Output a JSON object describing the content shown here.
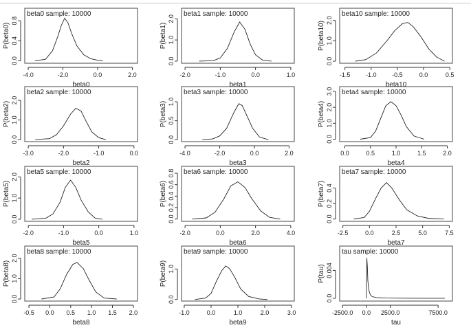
{
  "figure": {
    "background": "#ffffff",
    "line_color": "#222222"
  },
  "chart_data": [
    {
      "type": "line",
      "id": "beta0",
      "title": "beta0 sample: 10000",
      "xlabel": "beta0",
      "ylabel": "P(beta0)",
      "xticks": [
        "-4.0",
        "-2.0",
        "0.0",
        "2.0"
      ],
      "xtick_values": [
        -4,
        -2,
        0,
        2
      ],
      "xlim": [
        -4.2,
        2.3
      ],
      "yticks": [
        "0.0",
        "0.4",
        "0.8"
      ],
      "ytick_values": [
        0,
        0.4,
        0.8
      ],
      "ylim": [
        -0.05,
        1.05
      ],
      "x": [
        -3.6,
        -3.0,
        -2.6,
        -2.3,
        -2.1,
        -1.9,
        -1.7,
        -1.5,
        -1.2,
        -0.8,
        -0.4,
        0.0,
        0.3
      ],
      "y": [
        0.0,
        0.03,
        0.2,
        0.48,
        0.7,
        0.85,
        0.75,
        0.55,
        0.3,
        0.12,
        0.04,
        0.01,
        0.0
      ]
    },
    {
      "type": "line",
      "id": "beta1",
      "title": "beta1 sample: 10000",
      "xlabel": "beta1",
      "ylabel": "P(beta1)",
      "xticks": [
        "-2.0",
        "-1.0",
        "0.0",
        "1.0"
      ],
      "xtick_values": [
        -2,
        -1,
        0,
        1
      ],
      "xlim": [
        -2.1,
        1.1
      ],
      "yticks": [
        "0.0",
        "1.0",
        "2.0"
      ],
      "ytick_values": [
        0,
        1,
        2
      ],
      "ylim": [
        -0.1,
        2.5
      ],
      "x": [
        -1.6,
        -1.2,
        -1.0,
        -0.8,
        -0.6,
        -0.45,
        -0.3,
        -0.15,
        0.0,
        0.2,
        0.45
      ],
      "y": [
        0.0,
        0.02,
        0.15,
        0.6,
        1.4,
        1.85,
        1.5,
        0.8,
        0.3,
        0.05,
        0.0
      ]
    },
    {
      "type": "line",
      "id": "beta10",
      "title": "beta10 sample: 10000",
      "xlabel": "beta10",
      "ylabel": "P(beta10)",
      "xticks": [
        "-1.5",
        "-1.0",
        "-0.5",
        "0.0",
        "0.5"
      ],
      "xtick_values": [
        -1.5,
        -1,
        -0.5,
        0,
        0.5
      ],
      "xlim": [
        -1.6,
        0.55
      ],
      "yticks": [
        "0.0",
        "1.0",
        "2.0"
      ],
      "ytick_values": [
        0,
        1,
        2
      ],
      "ylim": [
        -0.1,
        2.6
      ],
      "x": [
        -1.3,
        -1.1,
        -0.9,
        -0.7,
        -0.55,
        -0.4,
        -0.3,
        -0.2,
        -0.05,
        0.1,
        0.25,
        0.4
      ],
      "y": [
        0.0,
        0.08,
        0.4,
        1.0,
        1.5,
        1.85,
        1.9,
        1.7,
        1.2,
        0.6,
        0.2,
        0.0
      ]
    },
    {
      "type": "line",
      "id": "beta2",
      "title": "beta2 sample: 10000",
      "xlabel": "beta2",
      "ylabel": "P(beta2)",
      "xticks": [
        "-3.0",
        "-2.0",
        "-1.0",
        "0.0"
      ],
      "xtick_values": [
        -3,
        -2,
        -1,
        0
      ],
      "xlim": [
        -3.1,
        0.1
      ],
      "yticks": [
        "0.0",
        "1.0",
        "2.0"
      ],
      "ytick_values": [
        0,
        1,
        2
      ],
      "ylim": [
        -0.1,
        2.7
      ],
      "x": [
        -2.8,
        -2.4,
        -2.2,
        -2.0,
        -1.8,
        -1.65,
        -1.5,
        -1.35,
        -1.2,
        -1.0,
        -0.8
      ],
      "y": [
        0.0,
        0.05,
        0.25,
        0.7,
        1.3,
        1.6,
        1.45,
        0.9,
        0.4,
        0.1,
        0.0
      ]
    },
    {
      "type": "line",
      "id": "beta3",
      "title": "beta3 sample: 10000",
      "xlabel": "beta3",
      "ylabel": "P(beta3)",
      "xticks": [
        "-4.0",
        "-2.0",
        "0.0",
        "2.0"
      ],
      "xtick_values": [
        -4,
        -2,
        0,
        2
      ],
      "xlim": [
        -4.2,
        2.3
      ],
      "yticks": [
        "0.0",
        "0.5",
        "1.0"
      ],
      "ytick_values": [
        0,
        0.5,
        1
      ],
      "ylim": [
        -0.05,
        1.4
      ],
      "x": [
        -3.0,
        -2.4,
        -2.0,
        -1.6,
        -1.2,
        -0.9,
        -0.7,
        -0.4,
        -0.1,
        0.3,
        0.8
      ],
      "y": [
        0.0,
        0.02,
        0.1,
        0.3,
        0.7,
        0.95,
        0.9,
        0.6,
        0.3,
        0.07,
        0.0
      ]
    },
    {
      "type": "line",
      "id": "beta4",
      "title": "beta4 sample: 10000",
      "xlabel": "beta4",
      "ylabel": "P(beta4)",
      "xticks": [
        "0.0",
        "0.5",
        "1.0",
        "1.5",
        "2.0"
      ],
      "xtick_values": [
        0,
        0.5,
        1,
        1.5,
        2
      ],
      "xlim": [
        -0.1,
        2.1
      ],
      "yticks": [
        "0.0",
        "1.0",
        "2.0",
        "3.0"
      ],
      "ytick_values": [
        0,
        1,
        2,
        3
      ],
      "ylim": [
        -0.15,
        3.3
      ],
      "x": [
        0.3,
        0.5,
        0.6,
        0.7,
        0.8,
        0.9,
        1.0,
        1.1,
        1.2,
        1.35,
        1.55
      ],
      "y": [
        0.0,
        0.1,
        0.5,
        1.3,
        2.1,
        2.35,
        2.1,
        1.5,
        0.8,
        0.2,
        0.0
      ]
    },
    {
      "type": "line",
      "id": "beta5",
      "title": "beta5 sample: 10000",
      "xlabel": "beta5",
      "ylabel": "P(beta5)",
      "xticks": [
        "-2.0",
        "-1.0",
        "0.0",
        "1.0"
      ],
      "xtick_values": [
        -2,
        -1,
        0,
        1
      ],
      "xlim": [
        -2.1,
        1.1
      ],
      "yticks": [
        "0.0",
        "1.0",
        "2.0"
      ],
      "ytick_values": [
        0,
        1,
        2
      ],
      "ylim": [
        -0.1,
        2.5
      ],
      "x": [
        -1.9,
        -1.5,
        -1.3,
        -1.1,
        -0.95,
        -0.8,
        -0.65,
        -0.5,
        -0.3,
        -0.1,
        0.1
      ],
      "y": [
        0.0,
        0.05,
        0.25,
        0.8,
        1.5,
        1.85,
        1.5,
        0.9,
        0.35,
        0.05,
        0.0
      ]
    },
    {
      "type": "line",
      "id": "beta6",
      "title": "beta6 sample: 10000",
      "xlabel": "beta6",
      "ylabel": "P(beta6)",
      "xticks": [
        "-2.0",
        "0.0",
        "2.0",
        "4.0"
      ],
      "xtick_values": [
        -2,
        0,
        2,
        4
      ],
      "xlim": [
        -2.2,
        4.2
      ],
      "yticks": [
        "0.0",
        "0.2",
        "0.4",
        "0.6",
        "0.8"
      ],
      "ytick_values": [
        0,
        0.2,
        0.4,
        0.6,
        0.8
      ],
      "ylim": [
        -0.04,
        0.92
      ],
      "x": [
        -1.6,
        -0.8,
        -0.3,
        0.2,
        0.6,
        1.0,
        1.4,
        1.8,
        2.3,
        2.8,
        3.4
      ],
      "y": [
        0.0,
        0.02,
        0.12,
        0.35,
        0.58,
        0.65,
        0.55,
        0.35,
        0.14,
        0.03,
        0.0
      ]
    },
    {
      "type": "line",
      "id": "beta7",
      "title": "beta7 sample: 10000",
      "xlabel": "beta7",
      "ylabel": "P(beta7)",
      "xticks": [
        "-2.5",
        "0.0",
        "2.5",
        "5.0",
        "7.5"
      ],
      "xtick_values": [
        -2.5,
        0,
        2.5,
        5,
        7.5
      ],
      "xlim": [
        -2.8,
        7.8
      ],
      "yticks": [
        "0.0",
        "0.2",
        "0.4"
      ],
      "ytick_values": [
        0,
        0.2,
        0.4
      ],
      "ylim": [
        -0.03,
        0.68
      ],
      "x": [
        -1.5,
        -0.5,
        0.0,
        0.6,
        1.1,
        1.6,
        2.1,
        2.8,
        3.5,
        4.5,
        5.5,
        7.0
      ],
      "y": [
        0.0,
        0.02,
        0.1,
        0.27,
        0.4,
        0.47,
        0.4,
        0.25,
        0.12,
        0.04,
        0.01,
        0.0
      ]
    },
    {
      "type": "line",
      "id": "beta8",
      "title": "beta8 sample: 10000",
      "xlabel": "beta8",
      "ylabel": "P(beta8)",
      "xticks": [
        "-0.5",
        "0.0",
        "0.5",
        "1.0",
        "1.5",
        "2.0"
      ],
      "xtick_values": [
        -0.5,
        0,
        0.5,
        1,
        1.5,
        2
      ],
      "xlim": [
        -0.6,
        2.1
      ],
      "yticks": [
        "0.0",
        "1.0",
        "2.0"
      ],
      "ytick_values": [
        0,
        1,
        2
      ],
      "ylim": [
        -0.1,
        2.6
      ],
      "x": [
        -0.2,
        0.1,
        0.25,
        0.4,
        0.55,
        0.65,
        0.8,
        0.95,
        1.1,
        1.3,
        1.6
      ],
      "y": [
        0.0,
        0.1,
        0.5,
        1.2,
        1.7,
        1.8,
        1.5,
        0.9,
        0.35,
        0.05,
        0.0
      ]
    },
    {
      "type": "line",
      "id": "beta9",
      "title": "beta9 sample: 10000",
      "xlabel": "beta9",
      "ylabel": "P(beta9)",
      "xticks": [
        "-1.0",
        "0.0",
        "1.0",
        "2.0",
        "3.0"
      ],
      "xtick_values": [
        -1,
        0,
        1,
        2,
        3
      ],
      "xlim": [
        -1.1,
        3.1
      ],
      "yticks": [
        "0.0",
        "1.0"
      ],
      "ytick_values": [
        0,
        1
      ],
      "ylim": [
        -0.05,
        1.75
      ],
      "x": [
        -0.6,
        -0.2,
        0.0,
        0.2,
        0.4,
        0.55,
        0.7,
        0.9,
        1.1,
        1.4,
        1.8,
        2.1
      ],
      "y": [
        0.0,
        0.05,
        0.2,
        0.6,
        0.95,
        1.1,
        1.0,
        0.7,
        0.35,
        0.1,
        0.02,
        0.0
      ]
    },
    {
      "type": "line",
      "id": "tau",
      "title": "tau sample: 10000",
      "xlabel": "tau",
      "ylabel": "P(tau)",
      "xticks": [
        "-2500.0",
        "0.0",
        "2500.0",
        "7500.0"
      ],
      "xtick_values": [
        -2500,
        0,
        2500,
        7500
      ],
      "xlim": [
        -2800,
        9000
      ],
      "yticks": [
        "0.0",
        "0.004"
      ],
      "ytick_values": [
        0,
        0.004
      ],
      "ylim": [
        -0.0004,
        0.0075
      ],
      "x": [
        0,
        40,
        100,
        150,
        250,
        400,
        600,
        1000,
        2000,
        4000,
        6000,
        8200
      ],
      "y": [
        0.0,
        0.0058,
        0.0045,
        0.0025,
        0.0012,
        0.0005,
        0.00025,
        0.0001,
        3e-05,
        1e-05,
        0.0,
        0.0
      ]
    }
  ]
}
